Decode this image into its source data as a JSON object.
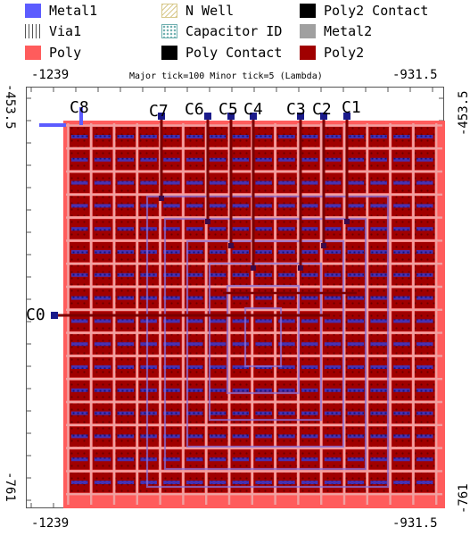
{
  "legend": {
    "items": [
      {
        "label": "Metal1",
        "color": "#5c5cff",
        "icon": "metal1-swatch"
      },
      {
        "label": "Via1",
        "color": "#555555",
        "icon": "via1-swatch"
      },
      {
        "label": "Poly",
        "color": "#ff5c5c",
        "icon": "poly-swatch"
      },
      {
        "label": "N Well",
        "color": "#d8c98c",
        "icon": "nwell-swatch"
      },
      {
        "label": "Capacitor ID",
        "color": "#6fb0b0",
        "icon": "capid-swatch"
      },
      {
        "label": "Poly Contact",
        "color": "#000000",
        "icon": "polycontact-swatch"
      },
      {
        "label": "Poly2 Contact",
        "color": "#000000",
        "icon": "poly2contact-swatch"
      },
      {
        "label": "Metal2",
        "color": "#a0a0a0",
        "icon": "metal2-swatch"
      },
      {
        "label": "Poly2",
        "color": "#a00000",
        "icon": "poly2-swatch"
      }
    ]
  },
  "axes": {
    "top_left": "-1239",
    "top_right": "-931.5",
    "bottom_left": "-1239",
    "bottom_right": "-931.5",
    "left_top": "-453.5",
    "left_bottom": "-761",
    "right_top": "-453.5",
    "right_bottom": "-761",
    "info": "Major tick=100 Minor tick=5 (Lambda)"
  },
  "capacitors": {
    "c0": "C0",
    "c1": "C1",
    "c2": "C2",
    "c3": "C3",
    "c4": "C4",
    "c5": "C5",
    "c6": "C6",
    "c7": "C7",
    "c8": "C8"
  }
}
